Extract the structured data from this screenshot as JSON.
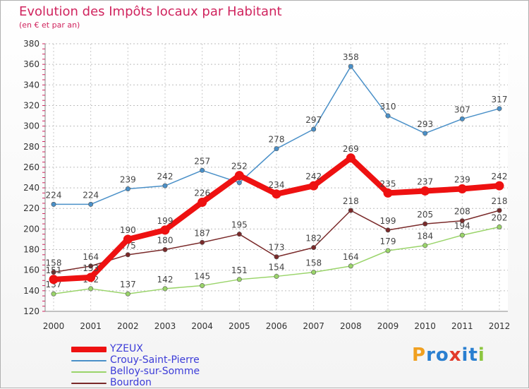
{
  "header": {
    "title": "Evolution des Impôts locaux par Habitant",
    "subtitle": "(en € et par an)"
  },
  "logo": {
    "letters": [
      "P",
      "r",
      "o",
      "x",
      "i",
      "t",
      "i"
    ],
    "colors": [
      "#f0a020",
      "#2a7fd0",
      "#2a7fd0",
      "#e23a2a",
      "#2a7fd0",
      "#2a7fd0",
      "#8cc63f"
    ]
  },
  "chart_data": {
    "type": "line",
    "title": "Evolution des Impôts locaux par Habitant",
    "subtitle": "(en € et par an)",
    "xlabel": "",
    "ylabel": "",
    "categories": [
      "2000",
      "2001",
      "2002",
      "2003",
      "2004",
      "2005",
      "2006",
      "2007",
      "2008",
      "2009",
      "2010",
      "2011",
      "2012"
    ],
    "ylim": [
      120,
      380
    ],
    "yticks": [
      120,
      140,
      160,
      180,
      200,
      220,
      240,
      260,
      280,
      300,
      320,
      340,
      360,
      380
    ],
    "grid": true,
    "legend_position": "bottom-left",
    "series": [
      {
        "name": "Crouy-Saint-Pierre",
        "color": "#4a90c8",
        "values": [
          224,
          224,
          239,
          242,
          257,
          245,
          278,
          297,
          358,
          310,
          293,
          307,
          317
        ],
        "labels": [
          "224",
          "224",
          "239",
          "242",
          "257",
          "",
          "278",
          "297",
          "358",
          "310",
          "293",
          "307",
          "317"
        ]
      },
      {
        "name": "Belloy-sur-Somme",
        "color": "#9ad46a",
        "values": [
          137,
          142,
          137,
          142,
          145,
          151,
          154,
          158,
          164,
          179,
          184,
          194,
          202
        ],
        "labels": [
          "137",
          "142",
          "137",
          "142",
          "145",
          "151",
          "154",
          "158",
          "164",
          "179",
          "184",
          "194",
          "202"
        ]
      },
      {
        "name": "Bourdon",
        "color": "#7a2a2a",
        "values": [
          158,
          164,
          175,
          180,
          187,
          195,
          173,
          182,
          218,
          199,
          205,
          208,
          218
        ],
        "labels": [
          "158",
          "164",
          "175",
          "180",
          "187",
          "195",
          "173",
          "182",
          "218",
          "199",
          "205",
          "208",
          "218"
        ]
      },
      {
        "name": "YZEUX",
        "color": "#ee1111",
        "values": [
          151,
          153,
          190,
          199,
          226,
          252,
          234,
          242,
          269,
          235,
          237,
          239,
          242
        ],
        "labels": [
          "151",
          "153",
          "190",
          "199",
          "226",
          "252",
          "234",
          "242",
          "269",
          "235",
          "237",
          "239",
          "242"
        ]
      }
    ],
    "legend_order": [
      "YZEUX",
      "Crouy-Saint-Pierre",
      "Belloy-sur-Somme",
      "Bourdon"
    ]
  }
}
